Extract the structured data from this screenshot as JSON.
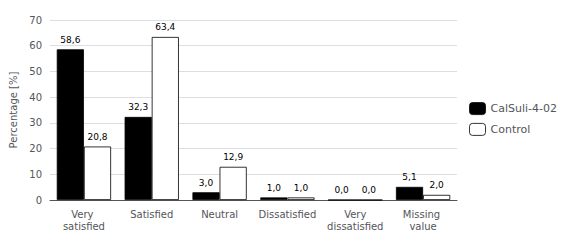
{
  "chart_data": {
    "type": "bar",
    "categories": [
      "Very satisfied",
      "Satisfied",
      "Neutral",
      "Dissatisfied",
      "Very\ndissatisfied",
      "Missing value"
    ],
    "series": [
      {
        "name": "CalSuli-4-02",
        "color": "#000000",
        "values": [
          58.6,
          32.3,
          3.0,
          1.0,
          0.0,
          5.1
        ],
        "value_labels": [
          "58,6",
          "32,3",
          "3,0",
          "1,0",
          "0,0",
          "5,1"
        ]
      },
      {
        "name": "Control",
        "color": "#ffffff",
        "values": [
          20.8,
          63.4,
          12.9,
          1.0,
          0.0,
          2.0
        ],
        "value_labels": [
          "20,8",
          "63,4",
          "12,9",
          "1,0",
          "0,0",
          "2,0"
        ]
      }
    ],
    "ylabel": "Percentage [%]",
    "ylim": [
      0,
      70
    ],
    "yticks": [
      0,
      10,
      20,
      30,
      40,
      50,
      60,
      70
    ],
    "grid": true,
    "legend": "right",
    "data_labels": true
  }
}
